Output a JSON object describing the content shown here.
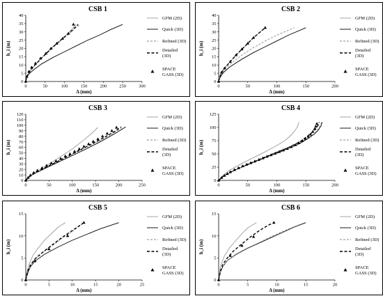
{
  "chart_data": [
    {
      "type": "line",
      "title": "CSB 1",
      "xlabel": "Δ (mm)",
      "ylabel": "h_i (m)",
      "xlim": [
        0,
        300
      ],
      "ylim": [
        0,
        40
      ],
      "xticks": [
        0,
        50,
        100,
        150,
        200,
        250,
        300
      ],
      "yticks": [
        0,
        5,
        10,
        15,
        20,
        25,
        30,
        35,
        40
      ],
      "legend_position": "right",
      "series": [
        {
          "name": "GFM (2D)",
          "style": "thin-grey",
          "x": [
            0,
            2,
            5,
            10,
            20,
            40,
            60,
            80,
            100,
            120,
            130
          ],
          "y": [
            0,
            2,
            4,
            6,
            9,
            14,
            19,
            23,
            27,
            32,
            34.5
          ]
        },
        {
          "name": "Quick (3D)",
          "style": "solid",
          "x": [
            0,
            2,
            5,
            10,
            20,
            40,
            70,
            100,
            130,
            160,
            190,
            220,
            250
          ],
          "y": [
            0,
            2,
            3.5,
            5,
            7,
            10.5,
            14.5,
            18,
            21.5,
            25,
            28,
            31.5,
            34.5
          ]
        },
        {
          "name": "Refined (3D)",
          "style": "dashed-grey",
          "x": [
            0,
            2,
            5,
            10,
            20,
            40,
            60,
            80,
            100,
            120,
            140
          ],
          "y": [
            0,
            2,
            4,
            6,
            9,
            14,
            18.5,
            22.5,
            26.5,
            30.5,
            34.5
          ]
        },
        {
          "name": "Detailed (3D)",
          "style": "dashed-black",
          "x": [
            0,
            2,
            5,
            10,
            20,
            40,
            60,
            80,
            100,
            120,
            135
          ],
          "y": [
            0,
            2,
            4,
            6,
            9,
            14,
            18.5,
            23,
            27,
            31,
            34.5
          ]
        },
        {
          "name": "SPACE GASS (3D)",
          "style": "triangles",
          "x": [
            0,
            3,
            8,
            15,
            25,
            38,
            52,
            65,
            80,
            95,
            110,
            123
          ],
          "y": [
            0,
            3,
            6,
            8.5,
            11,
            14,
            17,
            20,
            23,
            26,
            29,
            34.5
          ]
        }
      ]
    },
    {
      "type": "line",
      "title": "CSB 2",
      "xlabel": "Δ (mm)",
      "ylabel": "h_i (m)",
      "xlim": [
        0,
        200
      ],
      "ylim": [
        0,
        40
      ],
      "xticks": [
        0,
        50,
        100,
        150,
        200
      ],
      "yticks": [
        0,
        5,
        10,
        15,
        20,
        25,
        30,
        35,
        40
      ],
      "legend_position": "right",
      "series": [
        {
          "name": "GFM (2D)",
          "style": "thin-grey",
          "x": [
            0,
            2,
            5,
            10,
            20,
            30,
            40,
            50,
            60,
            70,
            80
          ],
          "y": [
            0,
            3,
            5.5,
            8,
            12,
            16,
            19.5,
            23,
            26.5,
            29.5,
            32.5
          ]
        },
        {
          "name": "Quick (3D)",
          "style": "solid",
          "x": [
            0,
            2,
            5,
            10,
            20,
            40,
            60,
            80,
            100,
            120,
            150
          ],
          "y": [
            0,
            2,
            4,
            6,
            9,
            13.5,
            17.5,
            21,
            24.5,
            28,
            32.5
          ]
        },
        {
          "name": "Refined (3D)",
          "style": "dashed-grey",
          "x": [
            0,
            2,
            5,
            10,
            20,
            40,
            60,
            80,
            100,
            130
          ],
          "y": [
            0,
            2.5,
            4.5,
            7,
            10.5,
            16,
            20.5,
            24.5,
            28,
            32.5
          ]
        },
        {
          "name": "Detailed (3D)",
          "style": "dashed-black",
          "x": [
            0,
            2,
            5,
            10,
            20,
            30,
            40,
            50,
            60,
            70,
            80
          ],
          "y": [
            0,
            3,
            5.5,
            8,
            12,
            16,
            19.5,
            23,
            26.5,
            29.5,
            32.5
          ]
        },
        {
          "name": "SPACE GASS (3D)",
          "style": "triangles",
          "x": [
            0,
            5,
            10,
            20,
            30,
            40,
            50,
            60,
            80
          ],
          "y": [
            0,
            5.5,
            8,
            12,
            16,
            19.5,
            23,
            26.5,
            32.5
          ]
        }
      ]
    },
    {
      "type": "line",
      "title": "CSB 3",
      "xlabel": "Δ (mm)",
      "ylabel": "h_i (m)",
      "xlim": [
        0,
        250
      ],
      "ylim": [
        0,
        120
      ],
      "xticks": [
        0,
        50,
        100,
        150,
        200,
        250
      ],
      "yticks": [
        0,
        10,
        20,
        30,
        40,
        50,
        60,
        70,
        80,
        90,
        100,
        110,
        120
      ],
      "legend_position": "right",
      "series": [
        {
          "name": "GFM (2D)",
          "style": "thin-grey",
          "x": [
            0,
            5,
            10,
            20,
            40,
            60,
            80,
            100,
            120,
            140,
            155
          ],
          "y": [
            0,
            5,
            9,
            15,
            25,
            35,
            46,
            57,
            70,
            84,
            96
          ]
        },
        {
          "name": "Quick (3D)",
          "style": "solid",
          "x": [
            0,
            5,
            10,
            20,
            40,
            70,
            100,
            130,
            160,
            190,
            215
          ],
          "y": [
            0,
            4.5,
            8,
            13,
            21,
            33,
            45,
            57,
            70,
            84,
            97
          ]
        },
        {
          "name": "Refined (3D)",
          "style": "dashed-grey",
          "x": [
            0,
            5,
            10,
            20,
            40,
            70,
            100,
            130,
            160,
            190,
            210
          ],
          "y": [
            0,
            4.5,
            8,
            13.5,
            22,
            34,
            46.5,
            59,
            72,
            86,
            97
          ]
        },
        {
          "name": "Detailed (3D)",
          "style": "dashed-black",
          "x": [
            0,
            5,
            10,
            20,
            40,
            70,
            100,
            130,
            160,
            190,
            205
          ],
          "y": [
            0,
            4.5,
            8,
            13.5,
            22.5,
            35,
            48,
            61,
            74,
            88,
            97
          ]
        },
        {
          "name": "SPACE GASS (3D)",
          "style": "triangles",
          "x": [
            0,
            5,
            10,
            17,
            25,
            35,
            45,
            55,
            65,
            75,
            85,
            95,
            105,
            115,
            125,
            135,
            145,
            155,
            165,
            175,
            185,
            195
          ],
          "y": [
            0,
            5,
            9.5,
            14,
            18,
            22.5,
            27,
            31,
            35,
            39.5,
            44,
            48,
            52.5,
            57,
            61.5,
            66,
            70.5,
            75,
            80,
            85,
            90,
            96
          ]
        }
      ]
    },
    {
      "type": "line",
      "title": "CSB 4",
      "xlabel": "Δ (mm)",
      "ylabel": "h_i (m)",
      "xlim": [
        0,
        200
      ],
      "ylim": [
        0,
        125
      ],
      "xticks": [
        0,
        50,
        100,
        150,
        200
      ],
      "yticks": [
        0,
        25,
        50,
        75,
        100,
        125
      ],
      "legend_position": "right",
      "series": [
        {
          "name": "GFM (2D)",
          "style": "thin-grey",
          "x": [
            0,
            5,
            10,
            20,
            40,
            60,
            80,
            100,
            115,
            125,
            132,
            136,
            138
          ],
          "y": [
            0,
            7,
            12,
            20,
            32,
            43,
            54,
            66,
            76,
            86,
            95,
            103,
            110
          ]
        },
        {
          "name": "Quick (3D)",
          "style": "solid",
          "x": [
            0,
            5,
            10,
            20,
            40,
            60,
            80,
            100,
            120,
            140,
            155,
            165,
            172,
            176,
            178
          ],
          "y": [
            0,
            5,
            9,
            15,
            25,
            34,
            43,
            51,
            60,
            70,
            80,
            88,
            96,
            103,
            110
          ]
        },
        {
          "name": "Refined (3D)",
          "style": "dashed-grey",
          "x": [
            0,
            5,
            10,
            20,
            40,
            60,
            80,
            100,
            120,
            140,
            155,
            165,
            171,
            175,
            177
          ],
          "y": [
            0,
            5,
            9,
            15,
            25,
            34,
            43,
            51,
            60,
            71,
            81,
            89,
            97,
            104,
            110
          ]
        },
        {
          "name": "Detailed (3D)",
          "style": "dashed-black",
          "x": [
            0,
            5,
            10,
            20,
            40,
            60,
            80,
            100,
            120,
            140,
            152,
            161,
            167,
            171,
            173
          ],
          "y": [
            0,
            5,
            9.5,
            15.5,
            26,
            35,
            44,
            53,
            62,
            73,
            83,
            91,
            98,
            104,
            110
          ]
        },
        {
          "name": "SPACE GASS (3D)",
          "style": "triangles",
          "x": [
            0,
            5,
            10,
            15,
            20,
            27,
            34,
            41,
            48,
            55,
            62,
            69,
            76,
            83,
            90,
            97,
            104,
            111,
            118,
            125,
            132,
            138,
            144,
            149,
            154,
            158,
            162,
            165,
            167,
            169
          ],
          "y": [
            0,
            5,
            9,
            12.5,
            16,
            20,
            23.5,
            27,
            30,
            33,
            36,
            39,
            42,
            45,
            48,
            51,
            54,
            57,
            60,
            63.5,
            67,
            71,
            75,
            79,
            83,
            87,
            92,
            97,
            102,
            107
          ]
        }
      ]
    },
    {
      "type": "line",
      "title": "CSB 5",
      "xlabel": "Δ (mm)",
      "ylabel": "h_i (m)",
      "xlim": [
        0,
        25
      ],
      "ylim": [
        0,
        15
      ],
      "xticks": [
        0,
        5,
        10,
        15,
        20,
        25
      ],
      "yticks": [
        0,
        5,
        10,
        15
      ],
      "legend_position": "right",
      "series": [
        {
          "name": "GFM (2D)",
          "style": "thin-grey",
          "x": [
            0,
            0.3,
            0.7,
            1.5,
            2.5,
            4,
            5.5,
            7,
            8.5
          ],
          "y": [
            0,
            2,
            3.5,
            5.5,
            7,
            9,
            10.5,
            12,
            13
          ]
        },
        {
          "name": "Quick (3D)",
          "style": "solid",
          "x": [
            0,
            0.5,
            1,
            2,
            4,
            7,
            10,
            13,
            16,
            20
          ],
          "y": [
            0,
            1.8,
            3,
            4.3,
            5.8,
            7.5,
            9,
            10.3,
            11.6,
            13
          ]
        },
        {
          "name": "Refined (3D)",
          "style": "dashed-grey",
          "x": [
            0,
            0.4,
            1,
            2,
            4,
            6,
            8,
            10,
            12.5
          ],
          "y": [
            0,
            2,
            3.3,
            4.7,
            6.5,
            8,
            9.6,
            11,
            13
          ]
        },
        {
          "name": "Detailed (3D)",
          "style": "dashed-black",
          "x": [
            0,
            0.4,
            1,
            2,
            4,
            6,
            8,
            10,
            12.5
          ],
          "y": [
            0,
            2,
            3.4,
            4.8,
            6.6,
            8.2,
            9.8,
            11.2,
            13
          ]
        },
        {
          "name": "SPACE GASS (3D)",
          "style": "triangles",
          "x": [
            0,
            2,
            5,
            9,
            12.5
          ],
          "y": [
            0,
            4.3,
            7,
            10,
            13
          ]
        }
      ]
    },
    {
      "type": "line",
      "title": "CSB 6",
      "xlabel": "Δ (mm)",
      "ylabel": "h_i (m)",
      "xlim": [
        0,
        20
      ],
      "ylim": [
        0,
        15
      ],
      "xticks": [
        0,
        5,
        10,
        15,
        20
      ],
      "yticks": [
        0,
        5,
        10,
        15
      ],
      "legend_position": "right",
      "series": [
        {
          "name": "GFM (2D)",
          "style": "thin-grey",
          "x": [
            0,
            0.2,
            0.5,
            1,
            2,
            3,
            4,
            5,
            6.5
          ],
          "y": [
            0,
            2.2,
            3.8,
            5.5,
            7.5,
            9,
            10.5,
            11.8,
            13
          ]
        },
        {
          "name": "Quick (3D)",
          "style": "solid",
          "x": [
            0,
            0.3,
            0.8,
            1.5,
            3,
            5,
            7,
            9,
            11,
            13,
            15
          ],
          "y": [
            0,
            1.8,
            3.2,
            4.4,
            5.8,
            7.2,
            8.4,
            9.6,
            10.8,
            12,
            13
          ]
        },
        {
          "name": "Refined (3D)",
          "style": "dashed-grey",
          "x": [
            0,
            0.3,
            0.8,
            1.5,
            3,
            5,
            7,
            9,
            11,
            13,
            14.8
          ],
          "y": [
            0,
            1.8,
            3.2,
            4.4,
            5.9,
            7.3,
            8.5,
            9.8,
            11,
            12.1,
            13
          ]
        },
        {
          "name": "Detailed (3D)",
          "style": "dashed-black",
          "x": [
            0,
            0.3,
            0.7,
            1.5,
            2.5,
            4,
            5.5,
            7,
            8.5,
            9.5
          ],
          "y": [
            0,
            2,
            3.5,
            5,
            6.5,
            8.2,
            9.8,
            11.2,
            12.4,
            13
          ]
        },
        {
          "name": "SPACE GASS (3D)",
          "style": "triangles",
          "x": [
            0,
            2,
            4,
            6,
            9.5
          ],
          "y": [
            0,
            5.5,
            7.8,
            9.8,
            13
          ]
        }
      ]
    }
  ]
}
